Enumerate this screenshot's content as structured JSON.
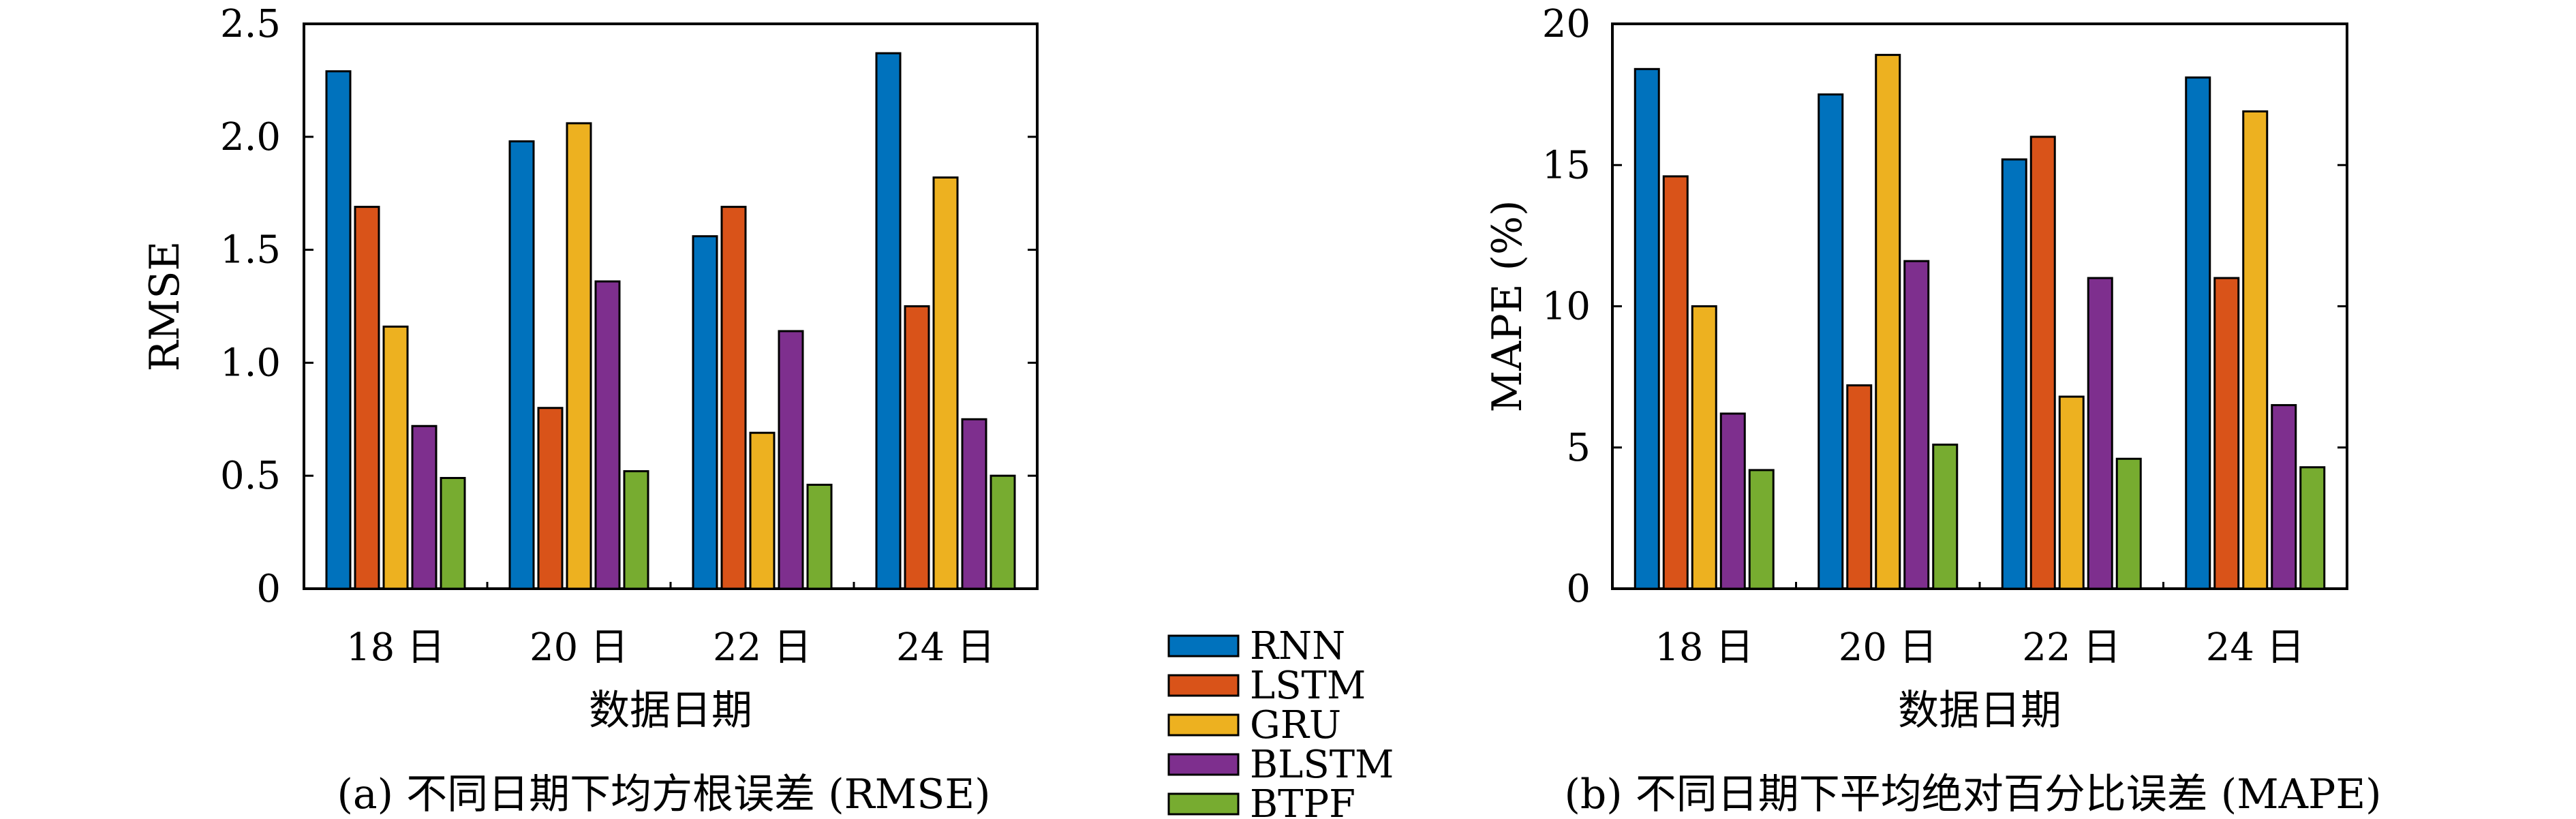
{
  "chart_data": [
    {
      "type": "bar",
      "categories": [
        "18 日",
        "20 日",
        "22 日",
        "24 日"
      ],
      "series": [
        {
          "name": "RNN",
          "values": [
            2.29,
            1.98,
            1.56,
            2.37
          ]
        },
        {
          "name": "LSTM",
          "values": [
            1.69,
            0.8,
            1.69,
            1.25
          ]
        },
        {
          "name": "GRU",
          "values": [
            1.16,
            2.06,
            0.69,
            1.82
          ]
        },
        {
          "name": "BLSTM",
          "values": [
            0.72,
            1.36,
            1.14,
            0.75
          ]
        },
        {
          "name": "BTPF",
          "values": [
            0.49,
            0.52,
            0.46,
            0.5
          ]
        }
      ],
      "title": "",
      "caption": "(a) 不同日期下均方根误差 (RMSE)",
      "xlabel": "数据日期",
      "ylabel": "RMSE",
      "ylim": [
        0,
        2.5
      ],
      "yticks": [
        "0",
        "0.5",
        "1.0",
        "1.5",
        "2.0",
        "2.5"
      ],
      "ytick_values": [
        0,
        0.5,
        1.0,
        1.5,
        2.0,
        2.5
      ],
      "grid": false
    },
    {
      "type": "bar",
      "categories": [
        "18 日",
        "20 日",
        "22 日",
        "24 日"
      ],
      "series": [
        {
          "name": "RNN",
          "values": [
            18.4,
            17.5,
            15.2,
            18.1
          ]
        },
        {
          "name": "LSTM",
          "values": [
            14.6,
            7.2,
            16.0,
            11.0
          ]
        },
        {
          "name": "GRU",
          "values": [
            10.0,
            18.9,
            6.8,
            16.9
          ]
        },
        {
          "name": "BLSTM",
          "values": [
            6.2,
            11.6,
            11.0,
            6.5
          ]
        },
        {
          "name": "BTPF",
          "values": [
            4.2,
            5.1,
            4.6,
            4.3
          ]
        }
      ],
      "title": "",
      "caption": "(b) 不同日期下平均绝对百分比误差 (MAPE)",
      "xlabel": "数据日期",
      "ylabel": "MAPE (%)",
      "ylim": [
        0,
        20
      ],
      "yticks": [
        "0",
        "5",
        "10",
        "15",
        "20"
      ],
      "ytick_values": [
        0,
        5,
        10,
        15,
        20
      ],
      "grid": false
    }
  ],
  "legend": {
    "placement": "bottom-center",
    "items": [
      {
        "label": "RNN",
        "color": "#0072BD"
      },
      {
        "label": "LSTM",
        "color": "#D95319"
      },
      {
        "label": "GRU",
        "color": "#EDB120"
      },
      {
        "label": "BLSTM",
        "color": "#7E2F8E"
      },
      {
        "label": "BTPF",
        "color": "#77AC30"
      }
    ]
  }
}
